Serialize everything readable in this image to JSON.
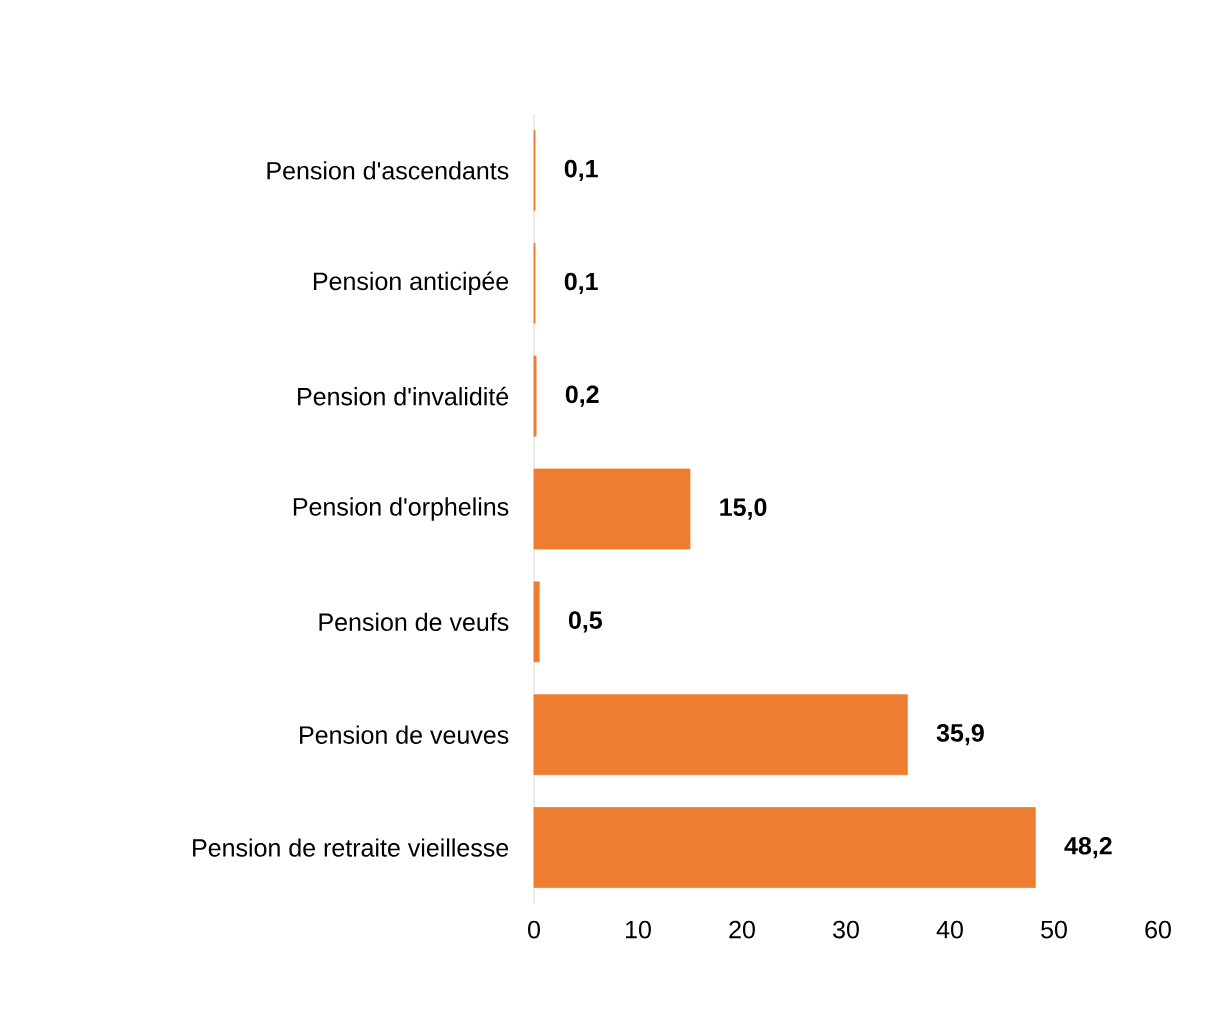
{
  "chart_data": {
    "type": "bar",
    "orientation": "horizontal",
    "categories": [
      "Pension d'ascendants",
      "Pension anticipée",
      "Pension d'invalidité",
      "Pension d'orphelins",
      "Pension de veufs",
      "Pension de veuves",
      "Pension de retraite vieillesse"
    ],
    "values": [
      0.1,
      0.1,
      0.2,
      15.0,
      0.5,
      35.9,
      48.2
    ],
    "value_labels": [
      "0,1",
      "0,1",
      "0,2",
      "15,0",
      "0,5",
      "35,9",
      "48,2"
    ],
    "color": "#ed7d31",
    "xlim": [
      0,
      60
    ],
    "xticks": [
      0,
      10,
      20,
      30,
      40,
      50,
      60
    ]
  }
}
